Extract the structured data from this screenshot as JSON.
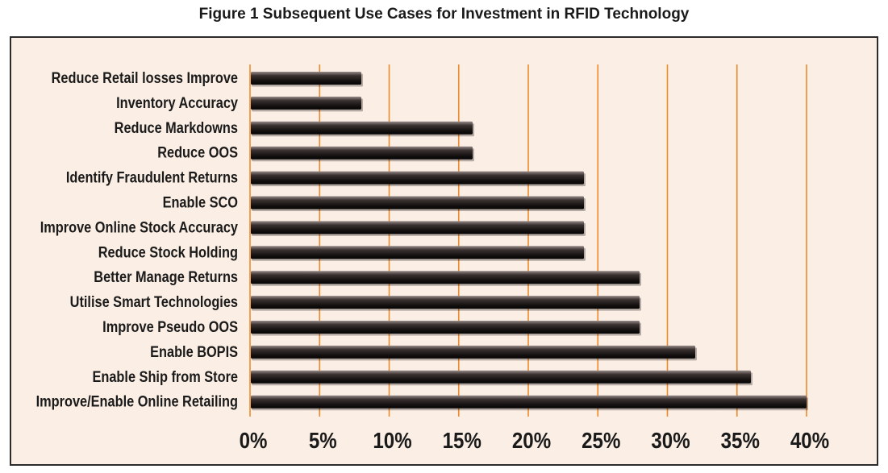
{
  "colors": {
    "page_background": "#ffffff",
    "chart_background": "#fbeee4",
    "frame": "#2b2b2b",
    "gridline": "#ee8a2b",
    "bar_dark": "#130f0f",
    "bar_mid": "#3a3231",
    "bar_highlight": "#978b89",
    "text": "#1a1a1a"
  },
  "chart_data": {
    "type": "bar",
    "orientation": "horizontal",
    "title": "Figure 1 Subsequent Use Cases for Investment in RFID Technology",
    "categories": [
      "Reduce Retail losses Improve",
      "Inventory Accuracy",
      "Reduce Markdowns",
      "Reduce OOS",
      "Identify Fraudulent Returns",
      "Enable SCO",
      "Improve Online Stock Accuracy",
      "Reduce Stock Holding",
      "Better Manage Returns",
      "Utilise Smart Technologies",
      "Improve Pseudo OOS",
      "Enable BOPIS",
      "Enable Ship from Store",
      "Improve/Enable Online Retailing"
    ],
    "values": [
      8,
      8,
      16,
      16,
      24,
      24,
      24,
      24,
      28,
      28,
      28,
      32,
      36,
      40
    ],
    "xlim": [
      0,
      40
    ],
    "x_ticks": [
      0,
      5,
      10,
      15,
      20,
      25,
      30,
      35,
      40
    ],
    "x_tick_labels": [
      "0%",
      "5%",
      "10%",
      "15%",
      "20%",
      "25%",
      "30%",
      "35%",
      "40%"
    ],
    "grid": {
      "vertical": true,
      "horizontal": false
    }
  }
}
